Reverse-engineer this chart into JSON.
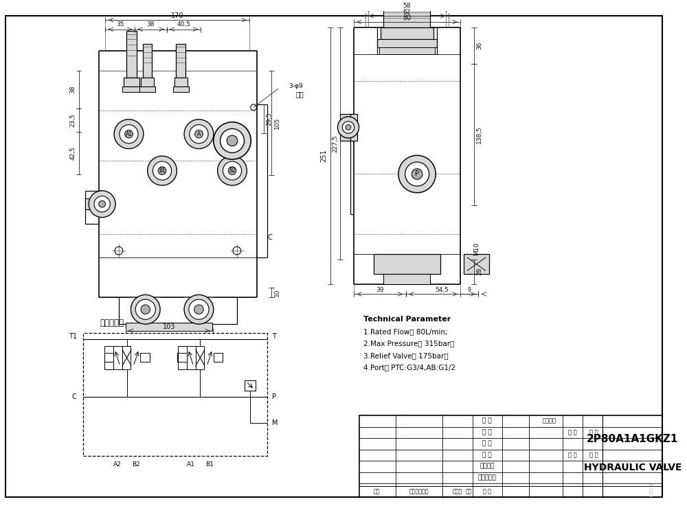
{
  "bg_color": "#ffffff",
  "line_color": "#000000",
  "title_text": "2P80A1A1GKZ1",
  "subtitle_text": "HYDRAULIC VALVE",
  "tech_params": [
    "Technical Parameter",
    "1.Rated Flow： 80L/min;",
    "2.Max Pressure： 315bar，",
    "3.Relief Valve： 175bar；",
    "4.Port： PTC:G3/4,AB:G1/2"
  ],
  "label_hydraulic": "液压原理图",
  "annotation_text": "透孔",
  "annotation_dim": "3-φ9",
  "table_row_labels": [
    "设 计",
    "制 图",
    "描 图",
    "校 对",
    "工艺检查",
    "标准化检查"
  ],
  "table_footer": [
    "标记",
    "更改内容概要",
    "更改人",
    "日期",
    "审 批"
  ],
  "gray_light": "#d8d8d8",
  "gray_medium": "#b0b0b0",
  "gray_dark": "#888888"
}
